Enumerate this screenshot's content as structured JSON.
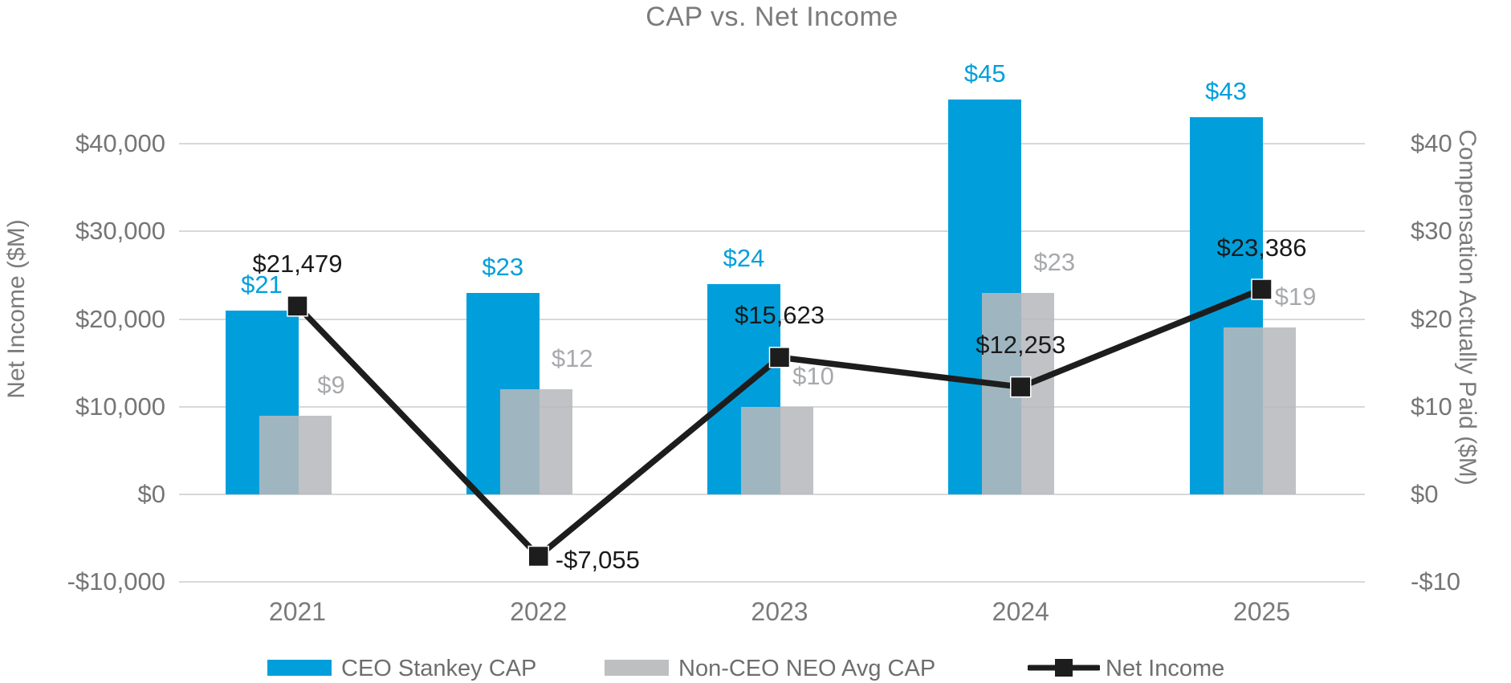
{
  "title": "CAP vs. Net Income",
  "chart_data": {
    "type": "combo-bar-line",
    "categories": [
      "2021",
      "2022",
      "2023",
      "2024",
      "2025"
    ],
    "series": [
      {
        "name": "CEO Stankey CAP",
        "type": "bar",
        "axis": "right",
        "color": "#009FDB",
        "label_color": "#009FDB",
        "values": [
          21,
          23,
          24,
          45,
          43
        ],
        "labels": [
          "$21",
          "$23",
          "$24",
          "$45",
          "$43"
        ]
      },
      {
        "name": "Non-CEO NEO Avg CAP",
        "type": "bar",
        "axis": "right",
        "color": "#B7B9BC",
        "fill_opacity": 0.87,
        "label_color": "#A7A9AC",
        "values": [
          9,
          12,
          10,
          23,
          19
        ],
        "labels": [
          "$9",
          "$12",
          "$10",
          "$23",
          "$19"
        ]
      },
      {
        "name": "Net Income",
        "type": "line",
        "axis": "left",
        "color": "#1D1D1D",
        "label_color": "#1A1A1A",
        "values": [
          21479,
          -7055,
          15623,
          12253,
          23386
        ],
        "labels": [
          "$21,479",
          "-$7,055",
          "$15,623",
          "$12,253",
          "$23,386"
        ],
        "label_placement": [
          "above",
          "right",
          "above",
          "above",
          "above"
        ]
      }
    ],
    "left_axis": {
      "title": "Net Income ($M)",
      "min": -10000,
      "max": 40000,
      "ticks": [
        {
          "label": "$40,000",
          "value": 40000
        },
        {
          "label": "$30,000",
          "value": 30000
        },
        {
          "label": "$20,000",
          "value": 20000
        },
        {
          "label": "$10,000",
          "value": 10000
        },
        {
          "label": "$0",
          "value": 0
        },
        {
          "label": "-$10,000",
          "value": -10000
        }
      ]
    },
    "right_axis": {
      "title": "Compensation Actually Paid ($M)",
      "min": -10,
      "max": 40,
      "ticks": [
        {
          "label": "$40",
          "value": 40
        },
        {
          "label": "$30",
          "value": 30
        },
        {
          "label": "$20",
          "value": 20
        },
        {
          "label": "$10",
          "value": 10
        },
        {
          "label": "$0",
          "value": 0
        },
        {
          "label": "-$10",
          "value": -10
        }
      ]
    },
    "grid": true,
    "legend_position": "bottom",
    "colors": {
      "grid": "#D8D8D8",
      "title_text": "#7B7B7B",
      "axis_text": "#757575",
      "legend_text": "#6E6E6E",
      "legend_gray_swatch": "#BDBFC1"
    }
  }
}
